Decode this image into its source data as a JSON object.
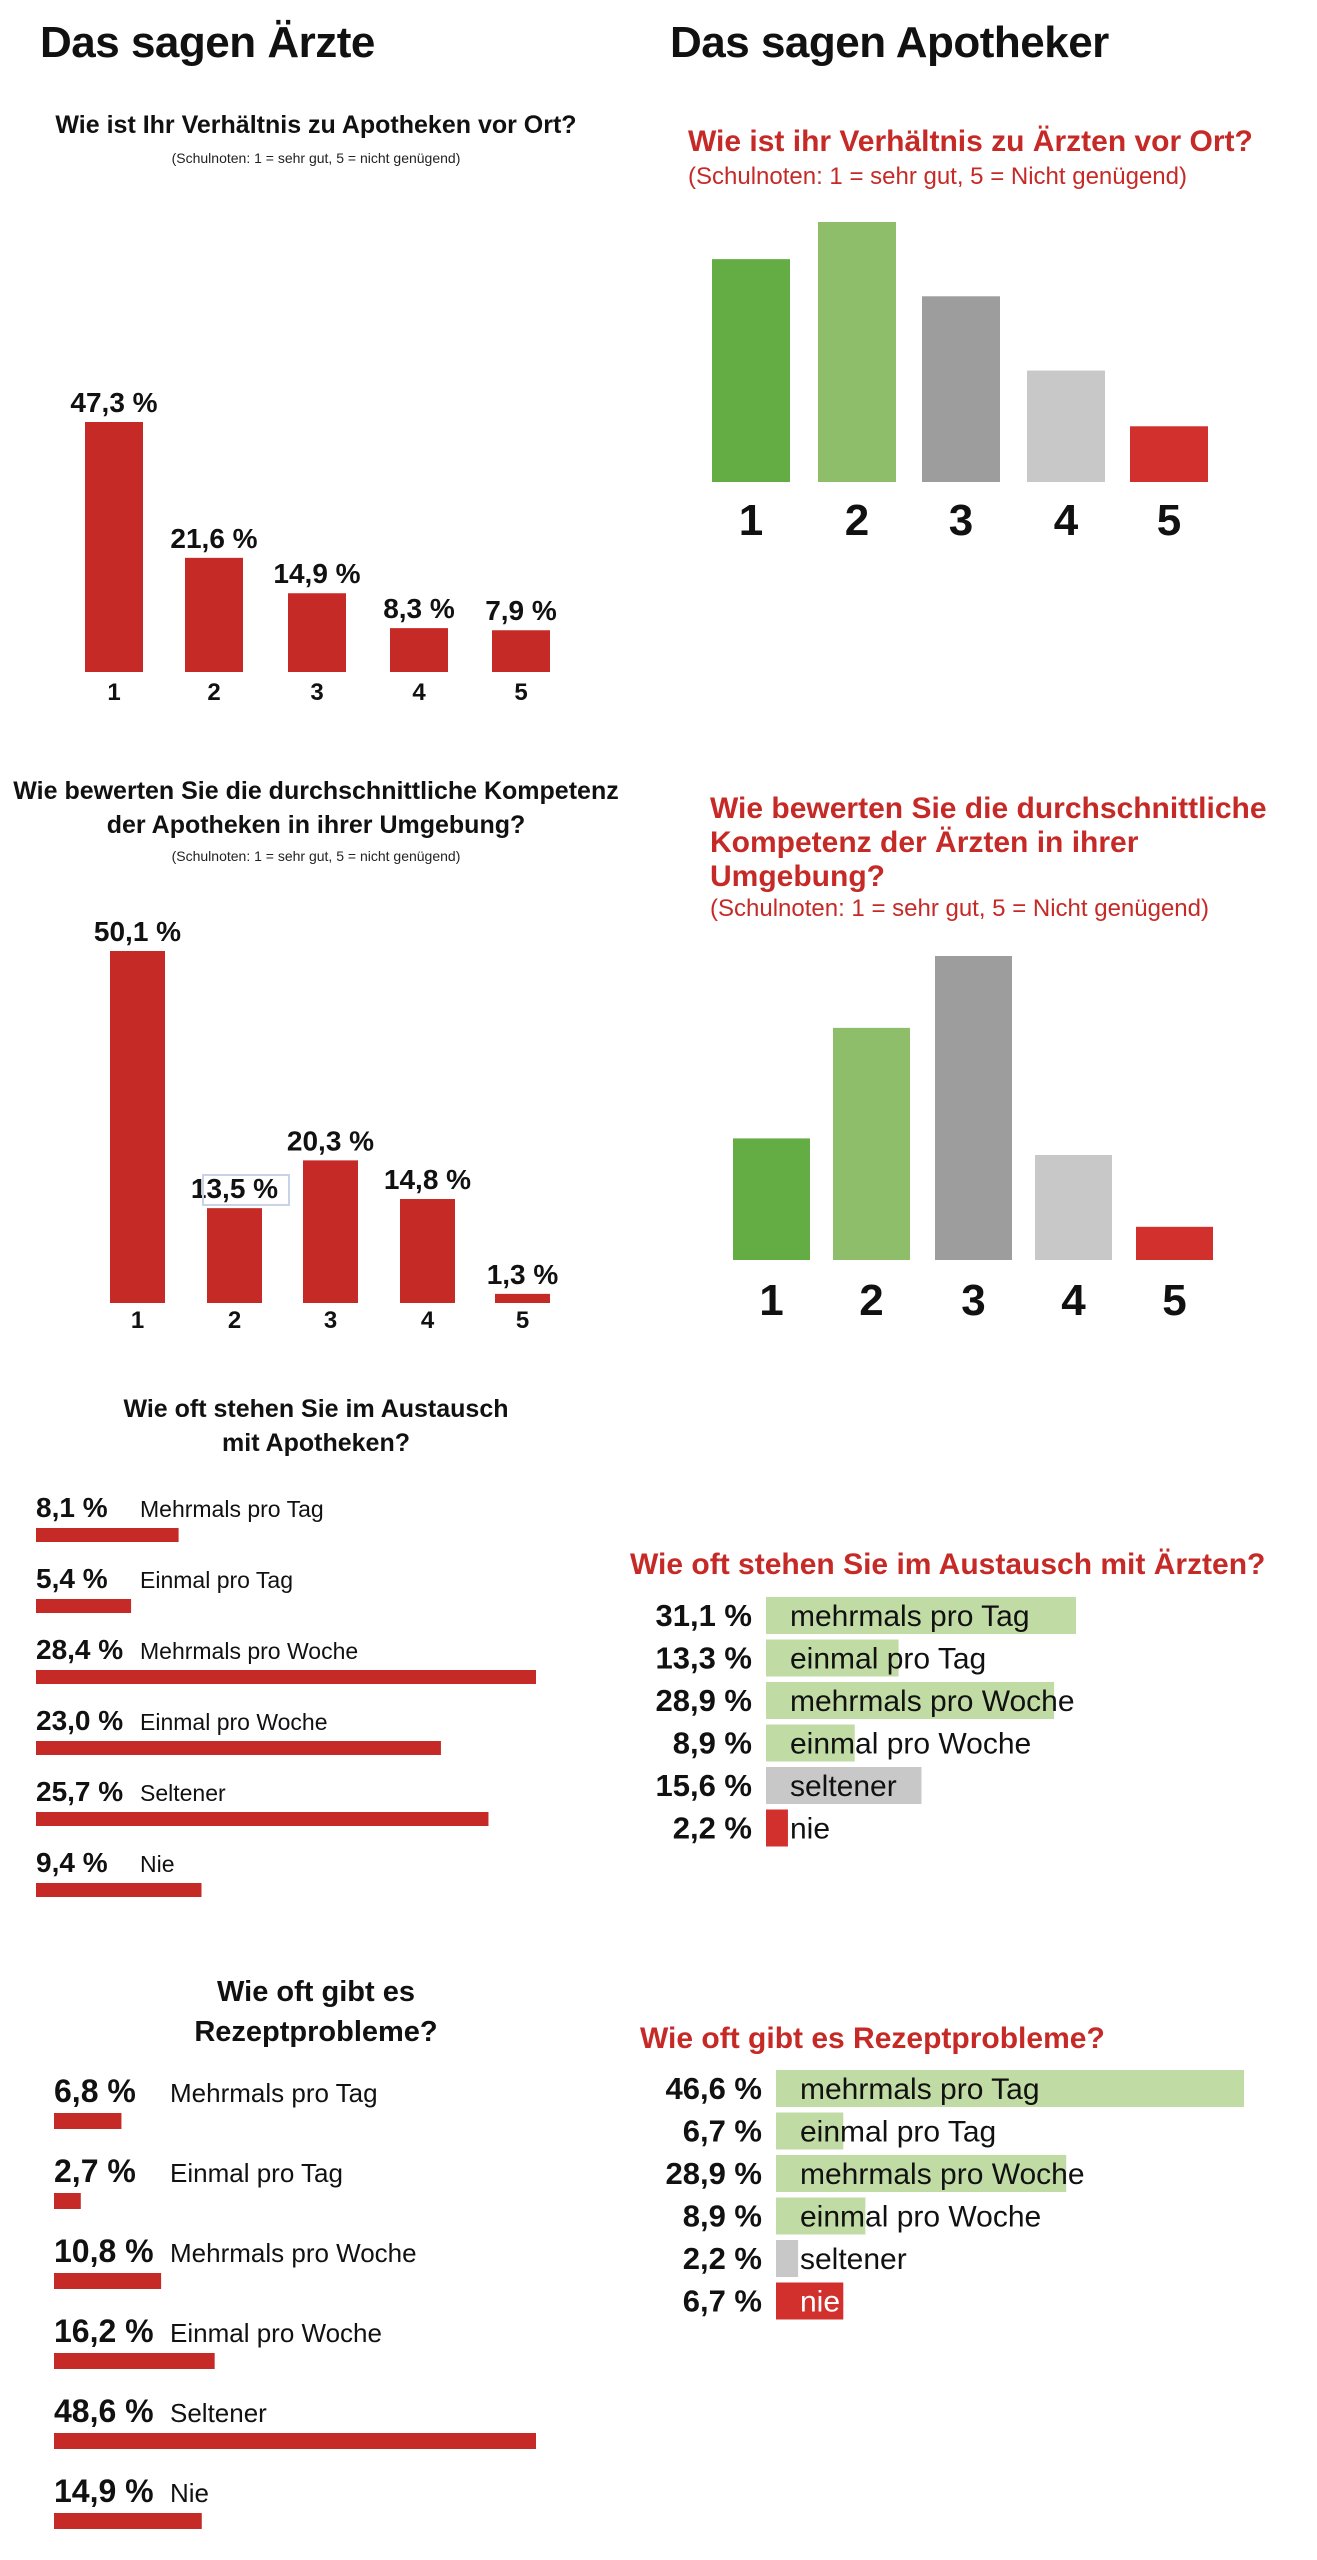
{
  "headings": {
    "left": "Das sagen Ärzte",
    "right": "Das sagen Apotheker"
  },
  "colors": {
    "red": "#c62a27",
    "green_dark": "#64ad45",
    "green_light": "#8fbe6a",
    "green_pale": "#c1dba4",
    "gray_dark": "#9d9d9d",
    "gray_light": "#c8c8c8"
  },
  "notes": {
    "black": "(Schulnoten: 1 = sehr gut, 5 = nicht genügend)",
    "red": "(Schulnoten: 1 = sehr gut, 5 = Nicht genügend)"
  },
  "q1_left": {
    "title": "Wie ist Ihr Verhältnis zu Apotheken vor Ort?"
  },
  "q1_right": {
    "title": "Wie ist ihr Verhältnis zu Ärzten vor Ort?"
  },
  "q2_left": {
    "title_l1": "Wie bewerten Sie die durchschnittliche Kompetenz",
    "title_l2": "der Apotheken in ihrer Umgebung?"
  },
  "q2_right": {
    "title_l1": "Wie bewerten Sie die durchschnittliche",
    "title_l2": "Kompetenz der Ärzten in ihrer",
    "title_l3": "Umgebung?"
  },
  "q3_left": {
    "title_l1": "Wie oft stehen Sie im Austausch",
    "title_l2": "mit Apotheken?"
  },
  "q3_right": {
    "title": "Wie oft stehen Sie im Austausch mit Ärzten?"
  },
  "q4_left": {
    "title_l1": "Wie oft gibt es",
    "title_l2": "Rezeptprobleme?"
  },
  "q4_right": {
    "title": "Wie oft gibt es Rezeptprobleme?"
  },
  "chart_data": [
    {
      "id": "c1",
      "type": "bar",
      "categories": [
        "1",
        "2",
        "3",
        "4",
        "5"
      ],
      "values": [
        47.3,
        21.6,
        14.9,
        8.3,
        7.9
      ],
      "value_labels": [
        "47,3 %",
        "21,6 %",
        "14,9 %",
        "8,3 %",
        "7,9 %"
      ],
      "colors": [
        "#c62a27",
        "#c62a27",
        "#c62a27",
        "#c62a27",
        "#c62a27"
      ]
    },
    {
      "id": "c2",
      "type": "bar",
      "categories": [
        "1",
        "2",
        "3",
        "4",
        "5"
      ],
      "values": [
        36,
        42,
        30,
        18,
        9
      ],
      "value_labels": [],
      "colors": [
        "#64ad45",
        "#8fbe6a",
        "#9d9d9d",
        "#c8c8c8",
        "#d1302c"
      ]
    },
    {
      "id": "c3",
      "type": "bar",
      "categories": [
        "1",
        "2",
        "3",
        "4",
        "5"
      ],
      "values": [
        50.1,
        13.5,
        20.3,
        14.8,
        1.3
      ],
      "value_labels": [
        "50,1 %",
        "13,5 %",
        "20,3 %",
        "14,8 %",
        "1,3 %"
      ],
      "colors": [
        "#c62a27",
        "#c62a27",
        "#c62a27",
        "#c62a27",
        "#c62a27"
      ]
    },
    {
      "id": "c4",
      "type": "bar",
      "categories": [
        "1",
        "2",
        "3",
        "4",
        "5"
      ],
      "values": [
        22,
        42,
        55,
        19,
        6
      ],
      "value_labels": [],
      "colors": [
        "#64ad45",
        "#8fbe6a",
        "#9d9d9d",
        "#c8c8c8",
        "#d1302c"
      ]
    },
    {
      "id": "c5",
      "type": "bar",
      "orientation": "horizontal",
      "categories": [
        "Mehrmals pro Tag",
        "Einmal pro Tag",
        "Mehrmals pro Woche",
        "Einmal pro Woche",
        "Seltener",
        "Nie"
      ],
      "values": [
        8.1,
        5.4,
        28.4,
        23.0,
        25.7,
        9.4
      ],
      "value_labels": [
        "8,1 %",
        "5,4 %",
        "28,4 %",
        "23,0 %",
        "25,7 %",
        "9,4 %"
      ]
    },
    {
      "id": "c6",
      "type": "bar",
      "orientation": "horizontal",
      "categories": [
        "mehrmals pro Tag",
        "einmal pro Tag",
        "mehrmals pro Woche",
        "einmal pro Woche",
        "seltener",
        "nie"
      ],
      "values": [
        31.1,
        13.3,
        28.9,
        8.9,
        15.6,
        2.2
      ],
      "value_labels": [
        "31,1 %",
        "13,3 %",
        "28,9 %",
        "8,9 %",
        "15,6 %",
        "2,2 %"
      ],
      "colors": [
        "#c1dba4",
        "#c1dba4",
        "#c1dba4",
        "#c1dba4",
        "#c8c8c8",
        "#d1302c"
      ]
    },
    {
      "id": "c7",
      "type": "bar",
      "orientation": "horizontal",
      "categories": [
        "Mehrmals pro Tag",
        "Einmal pro Tag",
        "Mehrmals pro Woche",
        "Einmal pro Woche",
        "Seltener",
        "Nie"
      ],
      "values": [
        6.8,
        2.7,
        10.8,
        16.2,
        48.6,
        14.9
      ],
      "value_labels": [
        "6,8 %",
        "2,7 %",
        "10,8 %",
        "16,2 %",
        "48,6 %",
        "14,9 %"
      ]
    },
    {
      "id": "c8",
      "type": "bar",
      "orientation": "horizontal",
      "categories": [
        "mehrmals pro Tag",
        "einmal pro Tag",
        "mehrmals pro Woche",
        "einmal pro Woche",
        "seltener",
        "nie"
      ],
      "values": [
        46.6,
        6.7,
        28.9,
        8.9,
        2.2,
        6.7
      ],
      "value_labels": [
        "46,6 %",
        "6,7 %",
        "28,9 %",
        "8,9 %",
        "2,2 %",
        "6,7 %"
      ],
      "colors": [
        "#c1dba4",
        "#c1dba4",
        "#c1dba4",
        "#c1dba4",
        "#c8c8c8",
        "#d1302c"
      ]
    }
  ]
}
